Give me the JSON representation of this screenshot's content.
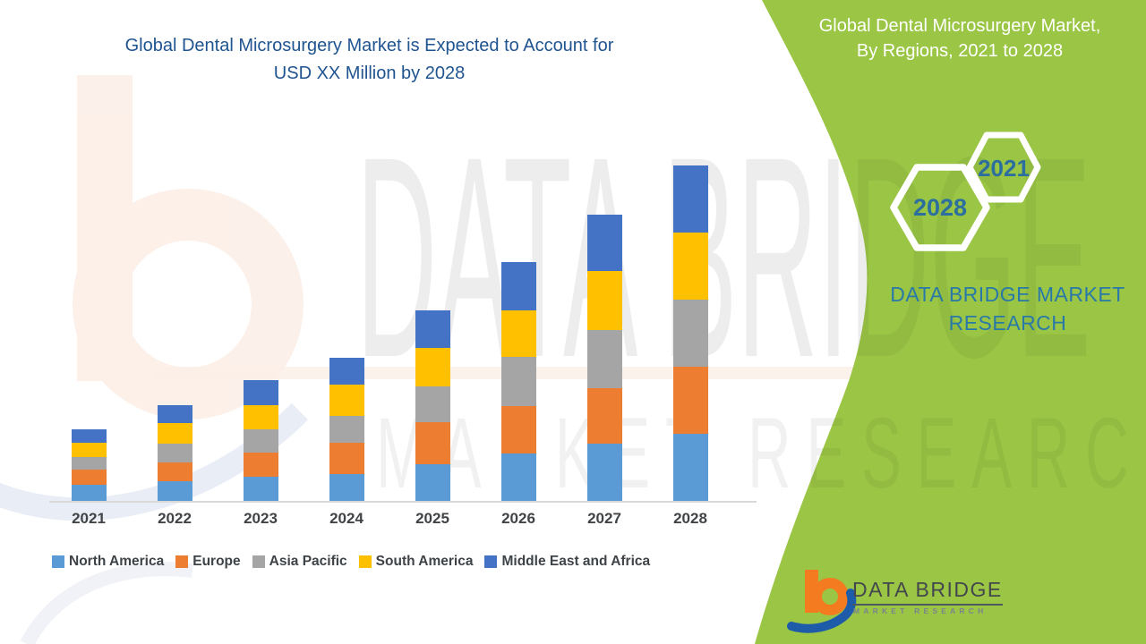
{
  "left_title": {
    "line1": "Global Dental Microsurgery Market is Expected to Account for",
    "line2": "USD XX Million by 2028"
  },
  "right_panel": {
    "title_line1": "Global Dental Microsurgery Market,",
    "title_line2": "By Regions, 2021 to 2028",
    "hexagons": [
      {
        "label": "2021"
      },
      {
        "label": "2028"
      }
    ],
    "brand_line1": "DATA BRIDGE MARKET",
    "brand_line2": "RESEARCH"
  },
  "watermark": {
    "text_large": "DATA BRIDGE",
    "text_small": "MARKET RESEARCH"
  },
  "logo": {
    "name": "DATA BRIDGE",
    "subtitle": "MARKET RESEARCH"
  },
  "colors": {
    "accent_green": "#9BC645",
    "title_blue": "#1F5490",
    "teal_text": "#2979A8",
    "hex_year_text": "#2C6F9E",
    "axis_label_gray": "#404447",
    "logo_orange": "#F47B20",
    "logo_blue": "#1E5BA9"
  },
  "chart_data": {
    "type": "bar",
    "stacked": true,
    "title": "Global Dental Microsurgery Market is Expected to Account for USD XX Million by 2028",
    "subtitle": "Global Dental Microsurgery Market, By Regions, 2021 to 2028",
    "xlabel": "",
    "ylabel": "",
    "units": "relative units (actual values shown as USD XX Million; value axis not displayed)",
    "value_axis_visible": false,
    "grid": false,
    "legend_position": "bottom",
    "categories": [
      "2021",
      "2022",
      "2023",
      "2024",
      "2025",
      "2026",
      "2027",
      "2028"
    ],
    "series": [
      {
        "name": "North America",
        "color": "#5B9BD5",
        "values": [
          18,
          22,
          27,
          30,
          41,
          53,
          64,
          75
        ]
      },
      {
        "name": "Europe",
        "color": "#ED7D31",
        "values": [
          17,
          21,
          27,
          35,
          47,
          53,
          62,
          75
        ]
      },
      {
        "name": "Asia Pacific",
        "color": "#A5A5A5",
        "values": [
          14,
          21,
          26,
          30,
          40,
          55,
          65,
          75
        ]
      },
      {
        "name": "South America",
        "color": "#FFC000",
        "values": [
          16,
          23,
          27,
          35,
          43,
          52,
          66,
          75
        ]
      },
      {
        "name": "Middle East and Africa",
        "color": "#4472C4",
        "values": [
          15,
          20,
          28,
          30,
          42,
          54,
          63,
          75
        ]
      }
    ],
    "stack_totals": [
      80,
      107,
      135,
      160,
      213,
      267,
      320,
      375
    ]
  }
}
